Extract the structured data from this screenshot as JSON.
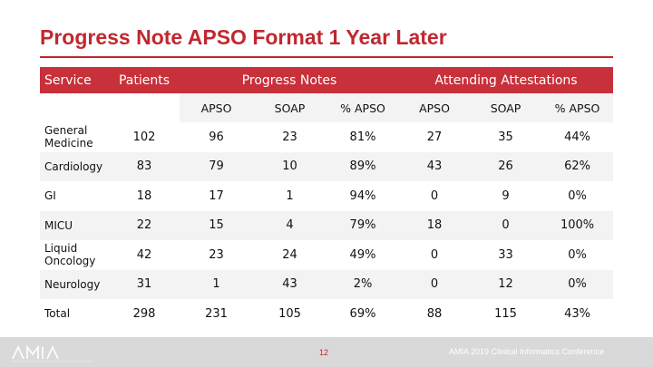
{
  "title": "Progress Note APSO Format 1 Year Later",
  "header": {
    "service": "Service",
    "patients": "Patients",
    "progress_notes": "Progress Notes",
    "attending": "Attending Attestations"
  },
  "subheader": {
    "pn_apso": "APSO",
    "pn_soap": "SOAP",
    "pn_pct": "% APSO",
    "aa_apso": "APSO",
    "aa_soap": "SOAP",
    "aa_pct": "% APSO"
  },
  "rows": [
    {
      "service": "General Medicine",
      "patients": "102",
      "pn_apso": "96",
      "pn_soap": "23",
      "pn_pct": "81%",
      "aa_apso": "27",
      "aa_soap": "35",
      "aa_pct": "44%"
    },
    {
      "service": "Cardiology",
      "patients": "83",
      "pn_apso": "79",
      "pn_soap": "10",
      "pn_pct": "89%",
      "aa_apso": "43",
      "aa_soap": "26",
      "aa_pct": "62%"
    },
    {
      "service": "GI",
      "patients": "18",
      "pn_apso": "17",
      "pn_soap": "1",
      "pn_pct": "94%",
      "aa_apso": "0",
      "aa_soap": "9",
      "aa_pct": "0%"
    },
    {
      "service": "MICU",
      "patients": "22",
      "pn_apso": "15",
      "pn_soap": "4",
      "pn_pct": "79%",
      "aa_apso": "18",
      "aa_soap": "0",
      "aa_pct": "100%"
    },
    {
      "service": "Liquid Oncology",
      "patients": "42",
      "pn_apso": "23",
      "pn_soap": "24",
      "pn_pct": "49%",
      "aa_apso": "0",
      "aa_soap": "33",
      "aa_pct": "0%"
    },
    {
      "service": "Neurology",
      "patients": "31",
      "pn_apso": "1",
      "pn_soap": "43",
      "pn_pct": "2%",
      "aa_apso": "0",
      "aa_soap": "12",
      "aa_pct": "0%"
    },
    {
      "service": "Total",
      "patients": "298",
      "pn_apso": "231",
      "pn_soap": "105",
      "pn_pct": "69%",
      "aa_apso": "88",
      "aa_soap": "115",
      "aa_pct": "43%"
    }
  ],
  "footer": {
    "logo": "AMIA",
    "page_number": "12",
    "conference": "AMIA 2019 Clinical Informatics Conference"
  },
  "colors": {
    "accent_red": "#c0282f",
    "header_fill": "#c8303a",
    "footer_gray": "#d9d9d9"
  }
}
